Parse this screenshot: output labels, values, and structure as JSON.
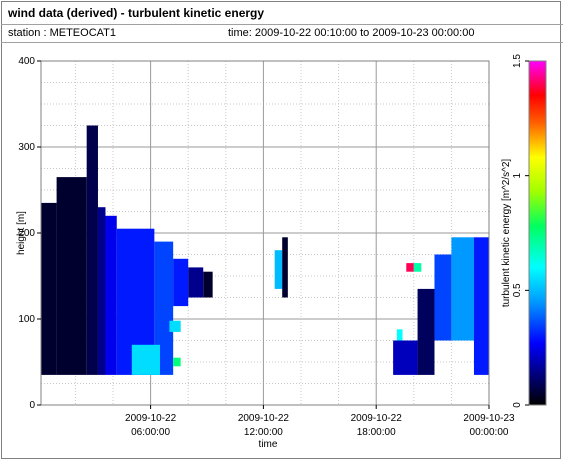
{
  "header": {
    "title": "wind data (derived) - turbulent kinetic energy",
    "station": "station : METEOCAT1",
    "time_range": "time: 2009-10-22 00:10:00 to 2009-10-23 00:00:00"
  },
  "chart_data": {
    "type": "heatmap",
    "xlabel": "time",
    "ylabel": "height [m]",
    "colorbar_label": "turbulent kinetic energy [m^2/s^2]",
    "x_ticks": [
      {
        "hour": 6,
        "line1": "2009-10-22",
        "line2": "06:00:00"
      },
      {
        "hour": 12,
        "line1": "2009-10-22",
        "line2": "12:00:00"
      },
      {
        "hour": 18,
        "line1": "2009-10-22",
        "line2": "18:00:00"
      },
      {
        "hour": 24,
        "line1": "2009-10-23",
        "line2": "00:00:00"
      }
    ],
    "xlim_hours": [
      0.17,
      24
    ],
    "y_ticks": [
      0,
      100,
      200,
      300,
      400
    ],
    "ylim": [
      0,
      400
    ],
    "colorbar_ticks": [
      0,
      0.5,
      1,
      1.5
    ],
    "colorbar_range": [
      0,
      1.5
    ],
    "grid": true,
    "cells": [
      {
        "t0": 0.17,
        "t1": 1.0,
        "h0": 35,
        "h1": 235,
        "v": 0.05
      },
      {
        "t0": 1.0,
        "t1": 2.6,
        "h0": 35,
        "h1": 265,
        "v": 0.05
      },
      {
        "t0": 2.6,
        "t1": 3.2,
        "h0": 35,
        "h1": 325,
        "v": 0.08
      },
      {
        "t0": 3.2,
        "t1": 3.6,
        "h0": 35,
        "h1": 230,
        "v": 0.15
      },
      {
        "t0": 3.6,
        "t1": 4.2,
        "h0": 35,
        "h1": 220,
        "v": 0.25
      },
      {
        "t0": 4.2,
        "t1": 6.2,
        "h0": 35,
        "h1": 205,
        "v": 0.3
      },
      {
        "t0": 6.2,
        "t1": 7.2,
        "h0": 35,
        "h1": 190,
        "v": 0.35
      },
      {
        "t0": 7.2,
        "t1": 8.0,
        "h0": 115,
        "h1": 170,
        "v": 0.3
      },
      {
        "t0": 8.0,
        "t1": 8.8,
        "h0": 125,
        "h1": 160,
        "v": 0.15
      },
      {
        "t0": 8.8,
        "t1": 9.3,
        "h0": 125,
        "h1": 155,
        "v": 0.05
      },
      {
        "t0": 5.0,
        "t1": 6.5,
        "h0": 35,
        "h1": 70,
        "v": 0.55
      },
      {
        "t0": 7.2,
        "t1": 7.6,
        "h0": 45,
        "h1": 55,
        "v": 0.75
      },
      {
        "t0": 7.0,
        "t1": 7.6,
        "h0": 85,
        "h1": 98,
        "v": 0.55
      },
      {
        "t0": 12.6,
        "t1": 13.0,
        "h0": 135,
        "h1": 180,
        "v": 0.5
      },
      {
        "t0": 13.0,
        "t1": 13.3,
        "h0": 125,
        "h1": 195,
        "v": 0.05
      },
      {
        "t0": 18.9,
        "t1": 20.2,
        "h0": 35,
        "h1": 75,
        "v": 0.2
      },
      {
        "t0": 19.1,
        "t1": 19.4,
        "h0": 75,
        "h1": 88,
        "v": 0.6
      },
      {
        "t0": 20.2,
        "t1": 21.1,
        "h0": 35,
        "h1": 135,
        "v": 0.1
      },
      {
        "t0": 21.1,
        "t1": 22.0,
        "h0": 75,
        "h1": 175,
        "v": 0.35
      },
      {
        "t0": 22.0,
        "t1": 23.2,
        "h0": 75,
        "h1": 195,
        "v": 0.45
      },
      {
        "t0": 23.2,
        "t1": 24.0,
        "h0": 35,
        "h1": 195,
        "v": 0.3
      },
      {
        "t0": 19.6,
        "t1": 20.0,
        "h0": 155,
        "h1": 165,
        "v": 1.4
      },
      {
        "t0": 20.0,
        "t1": 20.4,
        "h0": 155,
        "h1": 165,
        "v": 0.7
      }
    ]
  }
}
